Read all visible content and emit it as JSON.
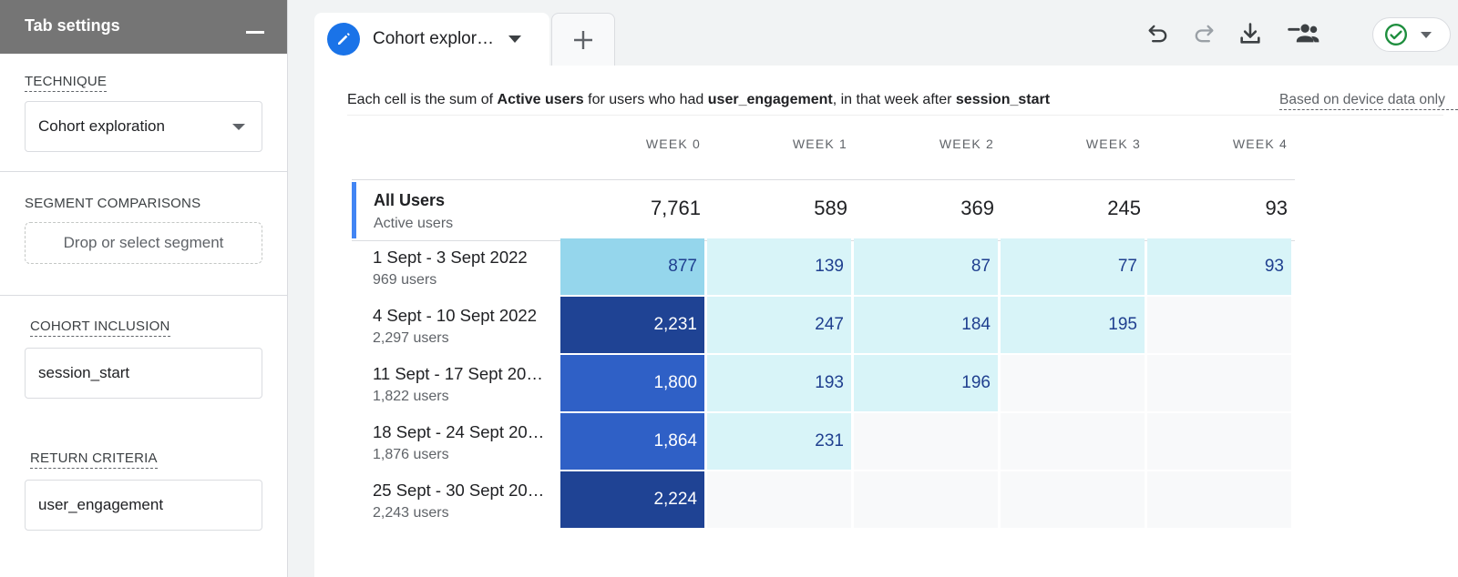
{
  "sidebar": {
    "title": "Tab settings",
    "technique": {
      "label": "TECHNIQUE",
      "value": "Cohort exploration"
    },
    "segment_comparisons": {
      "label": "SEGMENT COMPARISONS",
      "placeholder": "Drop or select segment"
    },
    "cohort_inclusion": {
      "label": "COHORT INCLUSION",
      "value": "session_start"
    },
    "return_criteria": {
      "label": "RETURN CRITERIA",
      "value": "user_engagement"
    }
  },
  "tabs": {
    "active_label": "Cohort explor…",
    "active_icon": "pencil-icon",
    "add_icon": "plus-icon"
  },
  "toolbar": {
    "icons": [
      "undo-icon",
      "redo-icon",
      "download-icon",
      "share-icon"
    ],
    "status_icon": "check-circle-icon"
  },
  "report": {
    "caption_parts": [
      {
        "text": "Each cell is the sum of ",
        "bold": false
      },
      {
        "text": "Active users",
        "bold": true
      },
      {
        "text": " for users who had ",
        "bold": false
      },
      {
        "text": "user_engagement",
        "bold": true
      },
      {
        "text": ", in that week after ",
        "bold": false
      },
      {
        "text": "session_start",
        "bold": true
      }
    ],
    "device_note": "Based on device data only",
    "columns": [
      "WEEK 0",
      "WEEK 1",
      "WEEK 2",
      "WEEK 3",
      "WEEK 4"
    ],
    "all_users": {
      "title": "All Users",
      "subtitle": "Active users",
      "totals": [
        "7,761",
        "589",
        "369",
        "245",
        "93"
      ]
    },
    "cohorts": [
      {
        "name": "1 Sept - 3 Sept 2022",
        "users": "969 users",
        "values": [
          "877",
          "139",
          "87",
          "77",
          "93"
        ]
      },
      {
        "name": "4 Sept - 10 Sept 2022",
        "users": "2,297 users",
        "values": [
          "2,231",
          "247",
          "184",
          "195",
          ""
        ]
      },
      {
        "name": "11 Sept - 17 Sept 20…",
        "users": "1,822 users",
        "values": [
          "1,800",
          "193",
          "196",
          "",
          ""
        ]
      },
      {
        "name": "18 Sept - 24 Sept 20…",
        "users": "1,876 users",
        "values": [
          "1,864",
          "231",
          "",
          "",
          ""
        ]
      },
      {
        "name": "25 Sept - 30 Sept 20…",
        "users": "2,243 users",
        "values": [
          "2,224",
          "",
          "",
          "",
          ""
        ]
      }
    ],
    "colors": {
      "dark": "#1f4394",
      "medium": "#2f60c6",
      "light": "#95d6ec",
      "pale": "#d8f4f8",
      "empty": "#f8f9fa",
      "accent": "#4285f4"
    }
  }
}
